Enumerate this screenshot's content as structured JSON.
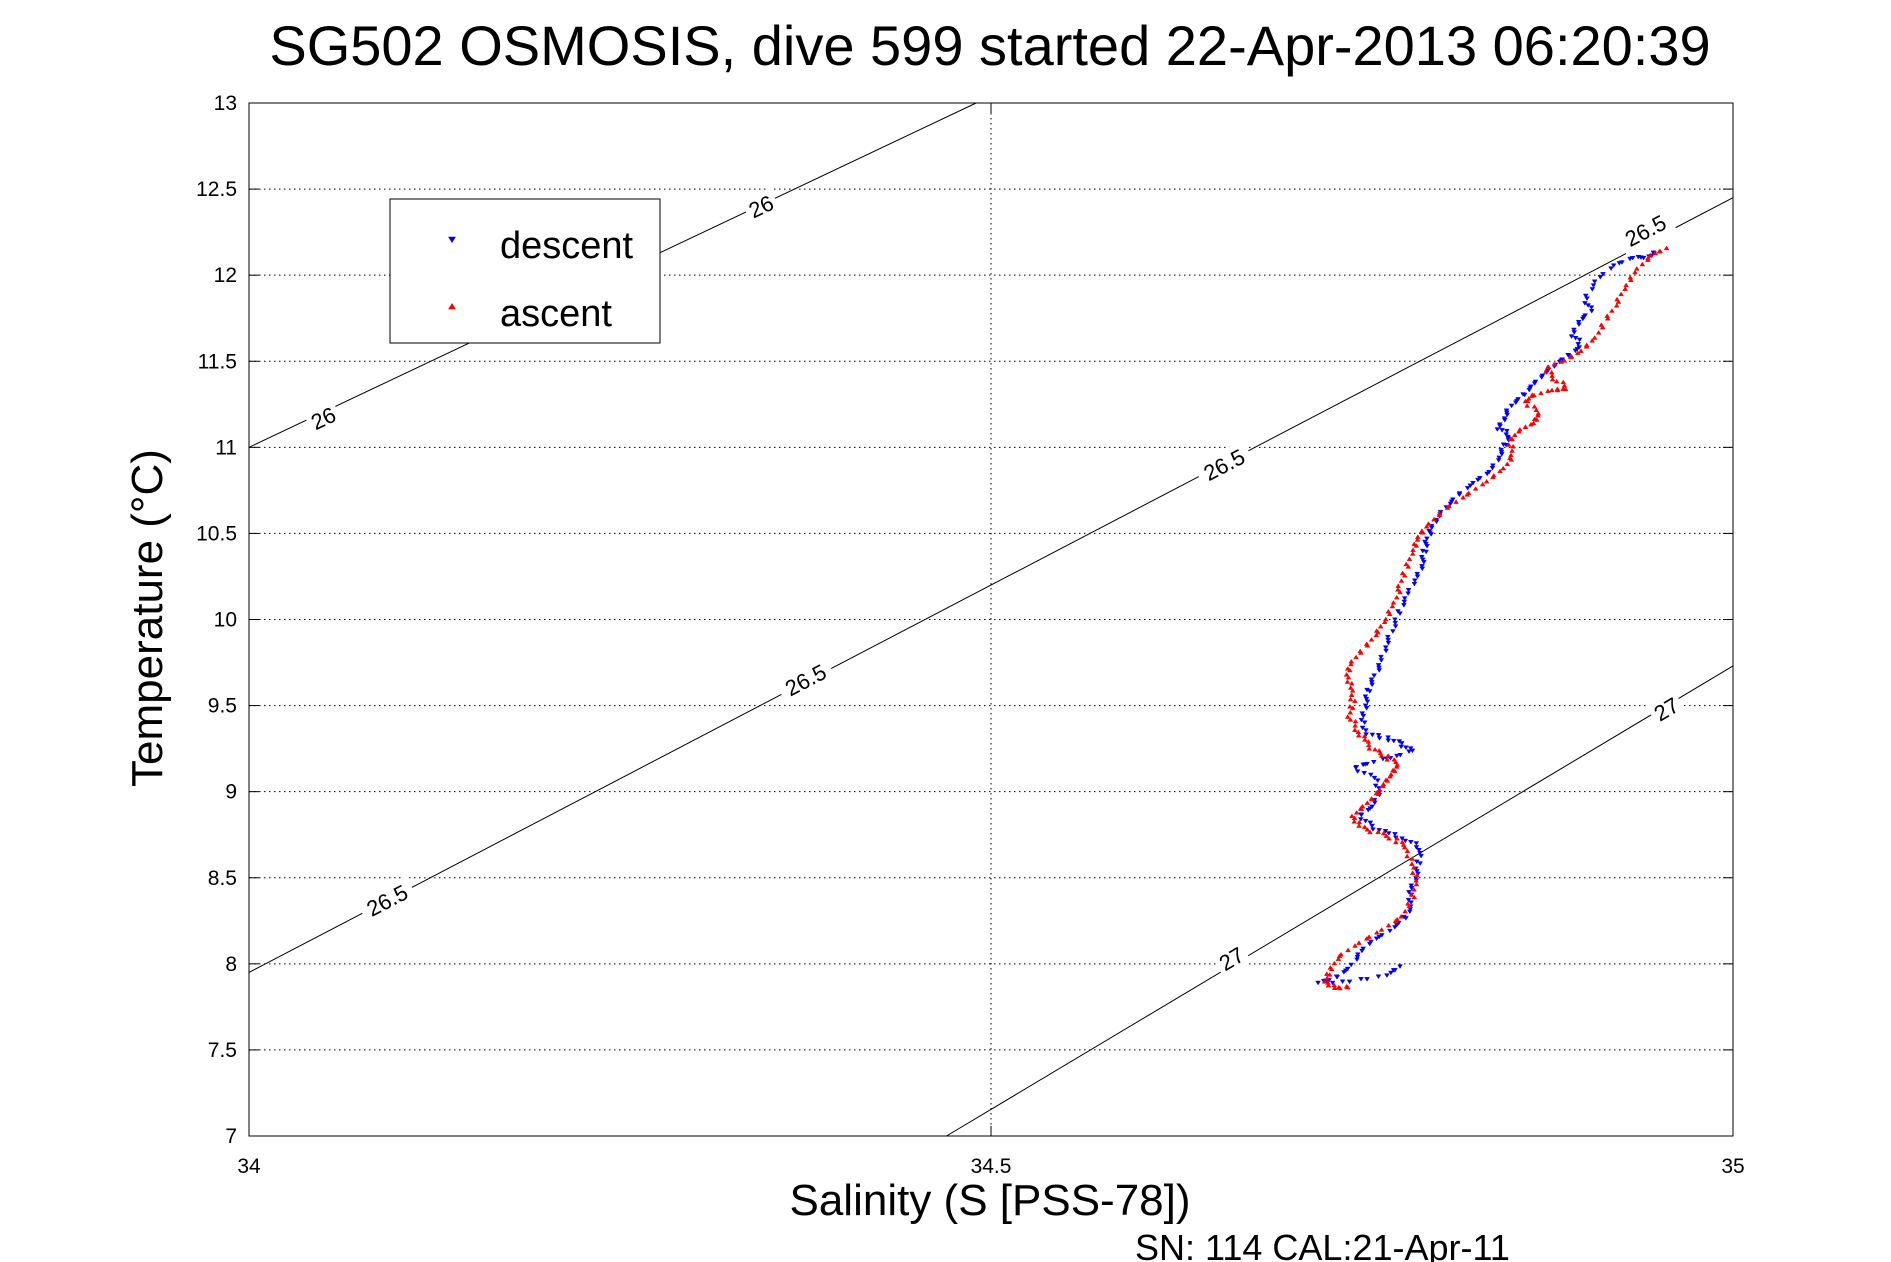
{
  "chart_data": {
    "type": "scatter",
    "title": "SG502 OSMOSIS, dive 599 started 22-Apr-2013 06:20:39",
    "xlabel": "Salinity (S [PSS-78])",
    "ylabel": "Temperature (°C)",
    "xlim": [
      34,
      35
    ],
    "ylim": [
      7,
      13
    ],
    "x_ticks": [
      "34",
      "34.5",
      "35"
    ],
    "y_ticks": [
      "7",
      "7.5",
      "8",
      "8.5",
      "9",
      "9.5",
      "10",
      "10.5",
      "11",
      "11.5",
      "12",
      "12.5",
      "13"
    ],
    "grid": true,
    "legend_position": "top-left",
    "footer": "SN: 114  CAL:21-Apr-11",
    "series": [
      {
        "name": "descent",
        "color": "#0000ff",
        "marker": "triangle-down",
        "points": [
          [
            34.948,
            12.14
          ],
          [
            34.944,
            12.11
          ],
          [
            34.932,
            12.1
          ],
          [
            34.92,
            12.06
          ],
          [
            34.908,
            11.97
          ],
          [
            34.9,
            11.86
          ],
          [
            34.904,
            11.79
          ],
          [
            34.896,
            11.73
          ],
          [
            34.892,
            11.65
          ],
          [
            34.898,
            11.59
          ],
          [
            34.888,
            11.53
          ],
          [
            34.88,
            11.48
          ],
          [
            34.872,
            11.42
          ],
          [
            34.865,
            11.36
          ],
          [
            34.858,
            11.3
          ],
          [
            34.85,
            11.24
          ],
          [
            34.846,
            11.17
          ],
          [
            34.842,
            11.11
          ],
          [
            34.85,
            11.07
          ],
          [
            34.846,
            11.01
          ],
          [
            34.842,
            10.94
          ],
          [
            34.836,
            10.86
          ],
          [
            34.826,
            10.8
          ],
          [
            34.814,
            10.72
          ],
          [
            34.806,
            10.65
          ],
          [
            34.8,
            10.58
          ],
          [
            34.796,
            10.52
          ],
          [
            34.794,
            10.46
          ],
          [
            34.792,
            10.39
          ],
          [
            34.79,
            10.31
          ],
          [
            34.786,
            10.23
          ],
          [
            34.78,
            10.13
          ],
          [
            34.774,
            10.03
          ],
          [
            34.77,
            9.93
          ],
          [
            34.766,
            9.84
          ],
          [
            34.762,
            9.74
          ],
          [
            34.758,
            9.66
          ],
          [
            34.754,
            9.58
          ],
          [
            34.752,
            9.5
          ],
          [
            34.75,
            9.42
          ],
          [
            34.754,
            9.34
          ],
          [
            34.766,
            9.31
          ],
          [
            34.776,
            9.28
          ],
          [
            34.784,
            9.24
          ],
          [
            34.77,
            9.2
          ],
          [
            34.755,
            9.17
          ],
          [
            34.745,
            9.14
          ],
          [
            34.758,
            9.08
          ],
          [
            34.762,
            9.0
          ],
          [
            34.758,
            8.92
          ],
          [
            34.748,
            8.86
          ],
          [
            34.756,
            8.8
          ],
          [
            34.768,
            8.76
          ],
          [
            34.78,
            8.72
          ],
          [
            34.79,
            8.67
          ],
          [
            34.788,
            8.58
          ],
          [
            34.786,
            8.5
          ],
          [
            34.782,
            8.42
          ],
          [
            34.784,
            8.34
          ],
          [
            34.778,
            8.26
          ],
          [
            34.768,
            8.19
          ],
          [
            34.756,
            8.13
          ],
          [
            34.748,
            8.06
          ],
          [
            34.742,
            7.98
          ],
          [
            34.732,
            7.92
          ],
          [
            34.72,
            7.89
          ],
          [
            34.742,
            7.9
          ],
          [
            34.768,
            7.94
          ],
          [
            34.774,
            7.98
          ]
        ]
      },
      {
        "name": "ascent",
        "color": "#ff0000",
        "marker": "triangle-up",
        "points": [
          [
            34.74,
            7.86
          ],
          [
            34.732,
            7.86
          ],
          [
            34.726,
            7.9
          ],
          [
            34.728,
            7.96
          ],
          [
            34.734,
            8.04
          ],
          [
            34.748,
            8.12
          ],
          [
            34.764,
            8.2
          ],
          [
            34.778,
            8.28
          ],
          [
            34.784,
            8.38
          ],
          [
            34.786,
            8.48
          ],
          [
            34.784,
            8.58
          ],
          [
            34.78,
            8.68
          ],
          [
            34.772,
            8.72
          ],
          [
            34.76,
            8.76
          ],
          [
            34.748,
            8.8
          ],
          [
            34.744,
            8.86
          ],
          [
            34.752,
            8.92
          ],
          [
            34.76,
            8.98
          ],
          [
            34.764,
            9.04
          ],
          [
            34.77,
            9.1
          ],
          [
            34.775,
            9.16
          ],
          [
            34.766,
            9.2
          ],
          [
            34.758,
            9.24
          ],
          [
            34.752,
            9.3
          ],
          [
            34.746,
            9.36
          ],
          [
            34.742,
            9.44
          ],
          [
            34.744,
            9.52
          ],
          [
            34.742,
            9.6
          ],
          [
            34.74,
            9.68
          ],
          [
            34.744,
            9.76
          ],
          [
            34.752,
            9.84
          ],
          [
            34.76,
            9.92
          ],
          [
            34.766,
            10.0
          ],
          [
            34.772,
            10.1
          ],
          [
            34.776,
            10.2
          ],
          [
            34.78,
            10.3
          ],
          [
            34.784,
            10.4
          ],
          [
            34.788,
            10.48
          ],
          [
            34.796,
            10.56
          ],
          [
            34.806,
            10.64
          ],
          [
            34.82,
            10.72
          ],
          [
            34.834,
            10.8
          ],
          [
            34.846,
            10.88
          ],
          [
            34.852,
            10.96
          ],
          [
            34.85,
            11.04
          ],
          [
            34.856,
            11.1
          ],
          [
            34.866,
            11.14
          ],
          [
            34.87,
            11.2
          ],
          [
            34.86,
            11.26
          ],
          [
            34.864,
            11.3
          ],
          [
            34.878,
            11.33
          ],
          [
            34.888,
            11.34
          ],
          [
            34.88,
            11.4
          ],
          [
            34.874,
            11.46
          ],
          [
            34.886,
            11.5
          ],
          [
            34.898,
            11.56
          ],
          [
            34.908,
            11.64
          ],
          [
            34.914,
            11.74
          ],
          [
            34.922,
            11.84
          ],
          [
            34.928,
            11.94
          ],
          [
            34.936,
            12.04
          ],
          [
            34.946,
            12.12
          ],
          [
            34.954,
            12.15
          ]
        ]
      }
    ],
    "contours": [
      {
        "label": "26",
        "points": [
          [
            34.0,
            11.0
          ],
          [
            34.49,
            13.0
          ]
        ]
      },
      {
        "label": "26.5",
        "points": [
          [
            34.0,
            7.95
          ],
          [
            35.0,
            12.45
          ]
        ]
      },
      {
        "label": "27",
        "points": [
          [
            34.47,
            7.0
          ],
          [
            35.0,
            9.73
          ]
        ]
      }
    ],
    "contour_labels": [
      {
        "text": "26",
        "at": [
          34.345,
          12.4
        ]
      },
      {
        "text": "26",
        "at": [
          34.05,
          11.17
        ]
      },
      {
        "text": "26.5",
        "at": [
          34.941,
          12.26
        ]
      },
      {
        "text": "26.5",
        "at": [
          34.657,
          10.9
        ]
      },
      {
        "text": "26.5",
        "at": [
          34.375,
          9.65
        ]
      },
      {
        "text": "26.5",
        "at": [
          34.093,
          8.37
        ]
      },
      {
        "text": "27",
        "at": [
          34.955,
          9.48
        ]
      },
      {
        "text": "27",
        "at": [
          34.662,
          8.03
        ]
      }
    ]
  }
}
